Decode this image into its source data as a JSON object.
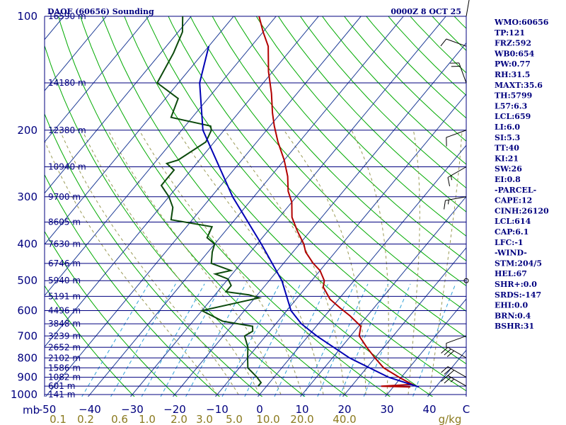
{
  "header": {
    "station": "DAOF (60656) Sounding",
    "time": "0000Z  8 OCT 25"
  },
  "indices": [
    "WMO:60656",
    "TP:121",
    "FRZ:592",
    "WB0:654",
    "PW:0.77",
    "RH:31.5",
    "MAXT:35.6",
    "TH:5799",
    "L57:6.3",
    "LCL:659",
    "LI:6.0",
    "SI:5.3",
    "TT:40",
    "KI:21",
    "SW:26",
    "EI:0.8",
    "-PARCEL-",
    "CAPE:12",
    "CINH:26120",
    "LCL:614",
    "CAP:6.1",
    "LFC:-1",
    "-WIND-",
    "STM:204/5",
    "HEL:67",
    "SHR+:0.0",
    "SRDS:-147",
    "EHI:0.0",
    "BRN:0.4",
    "BSHR:31"
  ],
  "colors": {
    "isobar": "#00007f",
    "isotherm": "#1e3c96",
    "dry_adiabat": "#00aa00",
    "moist_adiabat": "#9a9a55",
    "mixing_ratio": "#2ea0d8",
    "temperature": "#b20000",
    "dewpoint": "#0c4a0c",
    "parcel": "#0000b4",
    "wind": "#000000"
  },
  "chart_data": {
    "type": "line",
    "title": "DAOF (60656) Sounding",
    "diagram": "skew-T log-P",
    "pressure_axis_unit": "mb",
    "pressure_ticks": [
      100,
      200,
      300,
      400,
      500,
      600,
      700,
      800,
      900,
      1000
    ],
    "temperature_ticks": [
      -50,
      -40,
      -30,
      -20,
      -10,
      0,
      10,
      20,
      30,
      40
    ],
    "temperature_tick_labels": [
      "-50",
      "−40",
      "−30",
      "−20",
      "−10",
      "0",
      "10",
      "20",
      "30",
      "40"
    ],
    "temperature_corner_label": "C",
    "mixing_ratio_unit": "g/kg",
    "mixing_ratio_labels": [
      {
        "t": -47.5,
        "label": "0.1"
      },
      {
        "t": -41,
        "label": "0.2"
      },
      {
        "t": -33,
        "label": "0.6"
      },
      {
        "t": -26.5,
        "label": "1.0"
      },
      {
        "t": -19,
        "label": "2.0"
      },
      {
        "t": -13,
        "label": "3.0"
      },
      {
        "t": -6,
        "label": "5.0"
      },
      {
        "t": 2,
        "label": "10.0"
      },
      {
        "t": 10,
        "label": "20.0"
      },
      {
        "t": 20,
        "label": "40.0"
      }
    ],
    "height_levels": [
      {
        "p": 100,
        "h": "16590 m"
      },
      {
        "p": 150,
        "h": "14180 m"
      },
      {
        "p": 200,
        "h": "12380 m"
      },
      {
        "p": 250,
        "h": "10940 m"
      },
      {
        "p": 300,
        "h": "9700 m"
      },
      {
        "p": 350,
        "h": "8605 m"
      },
      {
        "p": 400,
        "h": "7630 m"
      },
      {
        "p": 450,
        "h": "6746 m"
      },
      {
        "p": 500,
        "h": "5940 m"
      },
      {
        "p": 550,
        "h": "5191 m"
      },
      {
        "p": 600,
        "h": "4496 m"
      },
      {
        "p": 650,
        "h": "3848 m"
      },
      {
        "p": 700,
        "h": "3239 m"
      },
      {
        "p": 750,
        "h": "2652 m"
      },
      {
        "p": 800,
        "h": "2102 m"
      },
      {
        "p": 850,
        "h": "1586 m"
      },
      {
        "p": 900,
        "h": "1082 m"
      },
      {
        "p": 950,
        "h": "601 m"
      },
      {
        "p": 1000,
        "h": "141 m"
      }
    ],
    "series": [
      {
        "kind": "temperature",
        "points": [
          [
            955,
            34
          ],
          [
            951,
            27
          ],
          [
            940,
            34
          ],
          [
            905,
            30
          ],
          [
            850,
            24
          ],
          [
            800,
            20
          ],
          [
            750,
            16
          ],
          [
            700,
            12
          ],
          [
            660,
            10.5
          ],
          [
            620,
            6
          ],
          [
            590,
            2
          ],
          [
            560,
            -2
          ],
          [
            520,
            -6
          ],
          [
            500,
            -7
          ],
          [
            470,
            -10
          ],
          [
            450,
            -13
          ],
          [
            420,
            -17
          ],
          [
            400,
            -19
          ],
          [
            370,
            -23
          ],
          [
            340,
            -27
          ],
          [
            310,
            -30
          ],
          [
            290,
            -33
          ],
          [
            265,
            -36
          ],
          [
            240,
            -40
          ],
          [
            215,
            -45
          ],
          [
            195,
            -49
          ],
          [
            180,
            -52
          ],
          [
            160,
            -56
          ],
          [
            140,
            -61
          ],
          [
            120,
            -66
          ],
          [
            110,
            -70
          ],
          [
            100,
            -74
          ],
          [
            90,
            -78
          ]
        ]
      },
      {
        "kind": "dewpoint",
        "points": [
          [
            951,
            -2
          ],
          [
            930,
            -2
          ],
          [
            900,
            -4
          ],
          [
            850,
            -8
          ],
          [
            800,
            -10
          ],
          [
            750,
            -12
          ],
          [
            700,
            -15
          ],
          [
            680,
            -14
          ],
          [
            660,
            -15
          ],
          [
            640,
            -23
          ],
          [
            600,
            -30
          ],
          [
            575,
            -24
          ],
          [
            555,
            -19
          ],
          [
            545,
            -22
          ],
          [
            535,
            -28
          ],
          [
            515,
            -28
          ],
          [
            495,
            -30
          ],
          [
            480,
            -34
          ],
          [
            470,
            -31
          ],
          [
            450,
            -37
          ],
          [
            420,
            -39
          ],
          [
            400,
            -40
          ],
          [
            385,
            -43
          ],
          [
            360,
            -44
          ],
          [
            345,
            -55
          ],
          [
            320,
            -57
          ],
          [
            300,
            -60
          ],
          [
            280,
            -64
          ],
          [
            255,
            -64
          ],
          [
            245,
            -67
          ],
          [
            240,
            -65
          ],
          [
            215,
            -62
          ],
          [
            200,
            -63
          ],
          [
            195,
            -64
          ],
          [
            185,
            -75
          ],
          [
            165,
            -77
          ],
          [
            150,
            -85
          ],
          [
            125,
            -87
          ],
          [
            110,
            -89
          ],
          [
            100,
            -92
          ],
          [
            90,
            -95
          ]
        ]
      },
      {
        "kind": "parcel",
        "points": [
          [
            955,
            36
          ],
          [
            900,
            27
          ],
          [
            800,
            14
          ],
          [
            700,
            2
          ],
          [
            650,
            -4
          ],
          [
            600,
            -9
          ],
          [
            500,
            -17
          ],
          [
            400,
            -29
          ],
          [
            300,
            -45
          ],
          [
            200,
            -65
          ],
          [
            150,
            -75
          ],
          [
            120,
            -80
          ]
        ]
      }
    ],
    "wind_barbs": [
      {
        "p": 950,
        "dir": 300,
        "spd": 25
      },
      {
        "p": 900,
        "dir": 300,
        "spd": 30
      },
      {
        "p": 800,
        "dir": 300,
        "spd": 30
      },
      {
        "p": 700,
        "dir": 250,
        "spd": 5
      },
      {
        "p": 500,
        "dir": 330,
        "spd": 0
      },
      {
        "p": 300,
        "dir": 260,
        "spd": 15
      },
      {
        "p": 250,
        "dir": 240,
        "spd": 15
      },
      {
        "p": 200,
        "dir": 250,
        "spd": 10
      },
      {
        "p": 150,
        "dir": 340,
        "spd": 20
      },
      {
        "p": 120,
        "dir": 290,
        "spd": 10
      },
      {
        "p": 100,
        "dir": 10,
        "spd": 10
      }
    ],
    "pressure_range": [
      100,
      1000
    ],
    "temperature_range": [
      -50,
      50
    ],
    "grid": true
  }
}
